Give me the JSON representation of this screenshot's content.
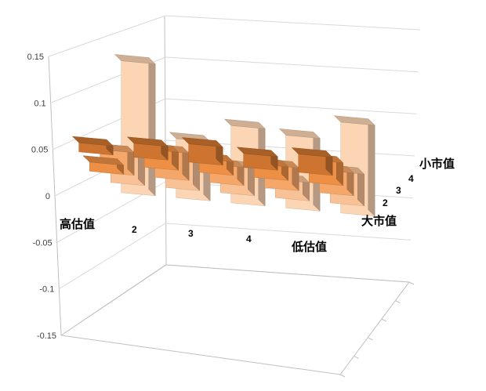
{
  "chart_data": {
    "type": "bar",
    "subtype": "3d-column-matrix",
    "title": "",
    "xlabel": "",
    "ylabel": "",
    "ylim": [
      -0.15,
      0.15
    ],
    "y_ticks": [
      "0.15",
      "0.1",
      "0.05",
      "0",
      "-0.05",
      "-0.1",
      "-0.15"
    ],
    "grid": true,
    "legend": "none",
    "valuation_labels": {
      "high": "高估值",
      "low": "低估值"
    },
    "valuation_ticks": [
      "2",
      "3",
      "4"
    ],
    "size_labels": {
      "small": "小市值",
      "large": "大市值"
    },
    "size_ticks": [
      "4",
      "3",
      "2"
    ],
    "size_rows": [
      "大市值",
      "2",
      "3",
      "4",
      "小市值"
    ],
    "valuation_columns": [
      "高估值",
      "2",
      "3",
      "4",
      "低估值"
    ],
    "values": [
      [
        0.01,
        0.015,
        0.02,
        0.015,
        0.02
      ],
      [
        -0.01,
        0.02,
        0.015,
        0.015,
        0.025
      ],
      [
        0.025,
        0.03,
        0.02,
        0.025,
        0.025
      ],
      [
        0.03,
        0.035,
        0.03,
        0.02,
        0.035
      ],
      [
        0.145,
        0.065,
        0.085,
        0.08,
        0.1
      ]
    ],
    "series": [
      {
        "name": "大市值",
        "values": [
          0.01,
          0.015,
          0.02,
          0.015,
          0.02
        ]
      },
      {
        "name": "2",
        "values": [
          -0.01,
          0.02,
          0.015,
          0.015,
          0.025
        ]
      },
      {
        "name": "3",
        "values": [
          0.025,
          0.03,
          0.02,
          0.025,
          0.025
        ]
      },
      {
        "name": "4",
        "values": [
          0.03,
          0.035,
          0.03,
          0.02,
          0.035
        ]
      },
      {
        "name": "小市值",
        "values": [
          0.145,
          0.065,
          0.085,
          0.08,
          0.1
        ]
      }
    ],
    "row_colors": [
      "#f4b183",
      "#f7a35c",
      "#f4a460",
      "#e98a3c",
      "#c76e2a"
    ],
    "row_colors_front_faded": [
      "#fcd5b4",
      "#f9c196",
      "#f5a76a",
      "#ed8f45",
      "#cd7530"
    ]
  }
}
